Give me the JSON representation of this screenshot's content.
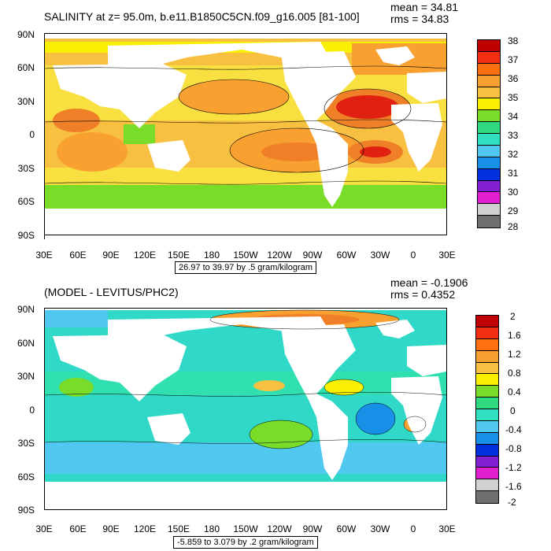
{
  "panels": [
    {
      "title": "SALINITY at z=  95.0m, b.e11.B1850C5CN.f09_g16.005 [81-100]",
      "mean": "mean = 34.81",
      "rms": "rms = 34.83",
      "range_label": "26.97 to 39.97 by .5 gram/kilogram",
      "lat_labels": [
        "90N",
        "60N",
        "30N",
        "0",
        "30S",
        "60S",
        "90S"
      ],
      "lon_labels": [
        "30E",
        "60E",
        "90E",
        "120E",
        "150E",
        "180",
        "150W",
        "120W",
        "90W",
        "60W",
        "30W",
        "0",
        "30E"
      ],
      "colorbar": {
        "labels": [
          "38",
          "37",
          "36",
          "35",
          "34",
          "33",
          "32",
          "31",
          "30",
          "29",
          "28"
        ],
        "colors": [
          "#c00000",
          "#f03010",
          "#ff7010",
          "#f8a030",
          "#f8c040",
          "#f8f000",
          "#78dc28",
          "#30d880",
          "#30e0c0",
          "#50c8f0",
          "#1890e8",
          "#0030e0",
          "#8020d0",
          "#e020d0",
          "#d0d0d0",
          "#707070"
        ]
      }
    },
    {
      "title": "(MODEL - LEVITUS/PHC2)",
      "mean": "mean = -0.1906",
      "rms": "rms = 0.4352",
      "range_label": "-5.859 to 3.079 by .2 gram/kilogram",
      "lat_labels": [
        "90N",
        "60N",
        "30N",
        "0",
        "30S",
        "60S",
        "90S"
      ],
      "lon_labels": [
        "30E",
        "60E",
        "90E",
        "120E",
        "150E",
        "180",
        "150W",
        "120W",
        "90W",
        "60W",
        "30W",
        "0",
        "30E"
      ],
      "colorbar": {
        "labels": [
          "2",
          "1.6",
          "1.2",
          "0.8",
          "0.4",
          "0",
          "-0.4",
          "-0.8",
          "-1.2",
          "-1.6",
          "-2"
        ],
        "colors": [
          "#c00000",
          "#f03010",
          "#ff7010",
          "#f8a030",
          "#f8c040",
          "#f8f000",
          "#78dc28",
          "#30d880",
          "#30e0c0",
          "#50c8f0",
          "#1890e8",
          "#0030e0",
          "#8020d0",
          "#e020d0",
          "#d0d0d0",
          "#707070"
        ]
      }
    }
  ]
}
